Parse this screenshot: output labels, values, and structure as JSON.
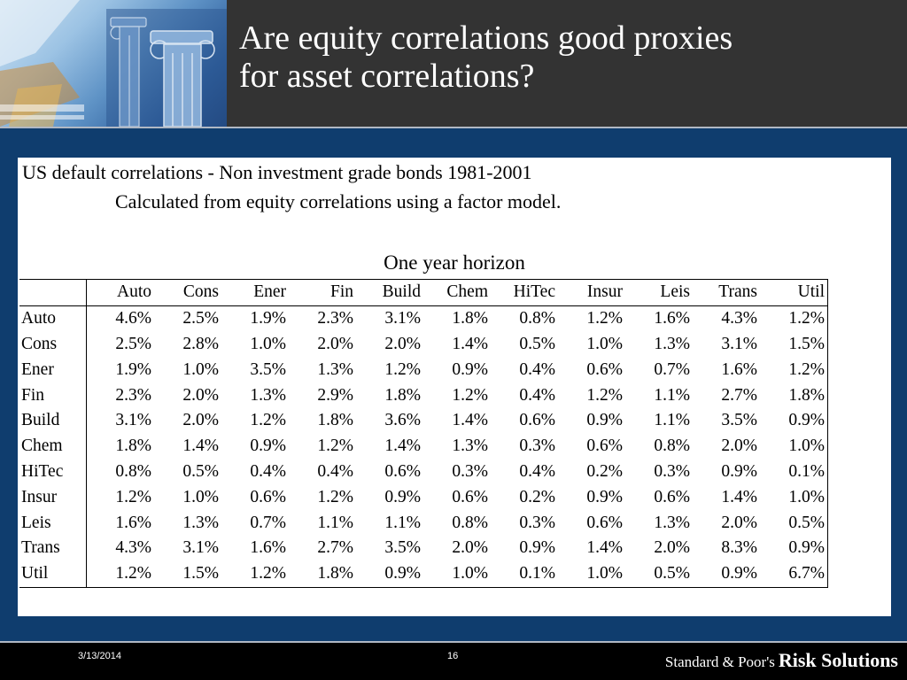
{
  "slide": {
    "title_line1": "Are equity correlations good proxies",
    "title_line2": "for asset correlations?"
  },
  "content": {
    "line1": "US default correlations  - Non investment grade bonds 1981-2001",
    "line2": "Calculated from equity correlations using a factor model.",
    "horizon": "One year horizon"
  },
  "table": {
    "columns": [
      "Auto",
      "Cons",
      "Ener",
      "Fin",
      "Build",
      "Chem",
      "HiTec",
      "Insur",
      "Leis",
      "Trans",
      "Util"
    ],
    "rows": [
      {
        "label": "Auto",
        "values": [
          "4.6%",
          "2.5%",
          "1.9%",
          "2.3%",
          "3.1%",
          "1.8%",
          "0.8%",
          "1.2%",
          "1.6%",
          "4.3%",
          "1.2%"
        ]
      },
      {
        "label": "Cons",
        "values": [
          "2.5%",
          "2.8%",
          "1.0%",
          "2.0%",
          "2.0%",
          "1.4%",
          "0.5%",
          "1.0%",
          "1.3%",
          "3.1%",
          "1.5%"
        ]
      },
      {
        "label": "Ener",
        "values": [
          "1.9%",
          "1.0%",
          "3.5%",
          "1.3%",
          "1.2%",
          "0.9%",
          "0.4%",
          "0.6%",
          "0.7%",
          "1.6%",
          "1.2%"
        ]
      },
      {
        "label": "Fin",
        "values": [
          "2.3%",
          "2.0%",
          "1.3%",
          "2.9%",
          "1.8%",
          "1.2%",
          "0.4%",
          "1.2%",
          "1.1%",
          "2.7%",
          "1.8%"
        ]
      },
      {
        "label": "Build",
        "values": [
          "3.1%",
          "2.0%",
          "1.2%",
          "1.8%",
          "3.6%",
          "1.4%",
          "0.6%",
          "0.9%",
          "1.1%",
          "3.5%",
          "0.9%"
        ]
      },
      {
        "label": "Chem",
        "values": [
          "1.8%",
          "1.4%",
          "0.9%",
          "1.2%",
          "1.4%",
          "1.3%",
          "0.3%",
          "0.6%",
          "0.8%",
          "2.0%",
          "1.0%"
        ]
      },
      {
        "label": "HiTec",
        "values": [
          "0.8%",
          "0.5%",
          "0.4%",
          "0.4%",
          "0.6%",
          "0.3%",
          "0.4%",
          "0.2%",
          "0.3%",
          "0.9%",
          "0.1%"
        ]
      },
      {
        "label": "Insur",
        "values": [
          "1.2%",
          "1.0%",
          "0.6%",
          "1.2%",
          "0.9%",
          "0.6%",
          "0.2%",
          "0.9%",
          "0.6%",
          "1.4%",
          "1.0%"
        ]
      },
      {
        "label": "Leis",
        "values": [
          "1.6%",
          "1.3%",
          "0.7%",
          "1.1%",
          "1.1%",
          "0.8%",
          "0.3%",
          "0.6%",
          "1.3%",
          "2.0%",
          "0.5%"
        ]
      },
      {
        "label": "Trans",
        "values": [
          "4.3%",
          "3.1%",
          "1.6%",
          "2.7%",
          "3.5%",
          "2.0%",
          "0.9%",
          "1.4%",
          "2.0%",
          "8.3%",
          "0.9%"
        ]
      },
      {
        "label": "Util",
        "values": [
          "1.2%",
          "1.5%",
          "1.2%",
          "1.8%",
          "0.9%",
          "1.0%",
          "0.1%",
          "1.0%",
          "0.5%",
          "0.9%",
          "6.7%"
        ]
      }
    ]
  },
  "footer": {
    "date": "3/13/2014",
    "page": "16",
    "brand_prefix": "Standard & Poor's",
    "brand_name": "Risk Solutions"
  },
  "colors": {
    "background": "#0f3d6e",
    "header": "#333333",
    "footer": "#000000",
    "panel": "#ffffff"
  },
  "icons": {
    "header_image": "classical-columns-image"
  }
}
